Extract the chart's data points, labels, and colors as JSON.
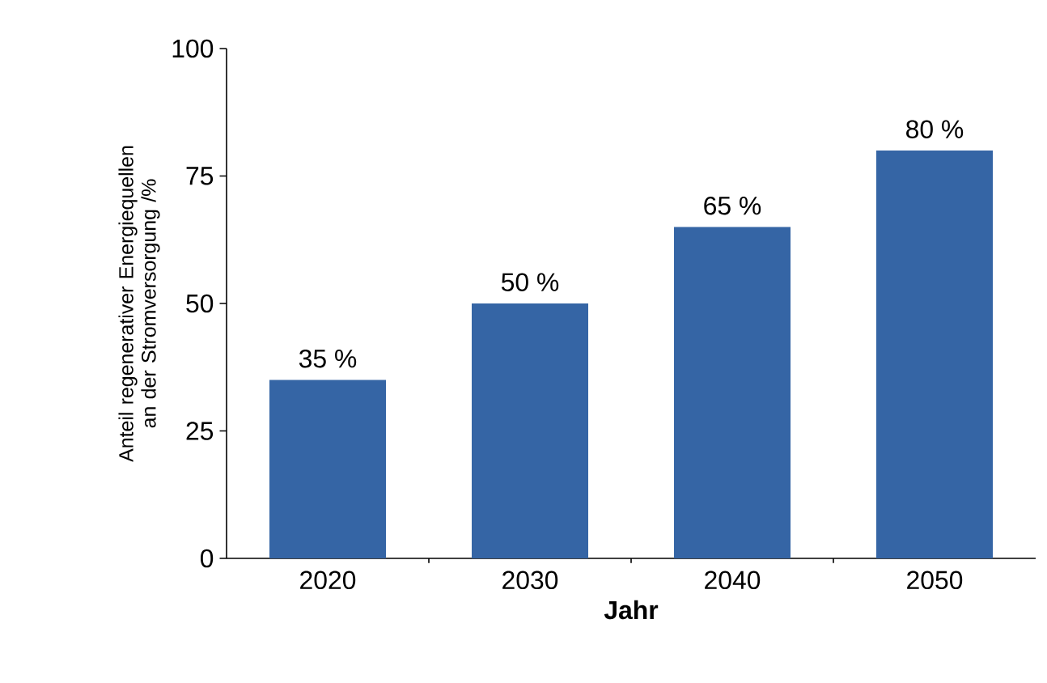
{
  "chart_data": {
    "type": "bar",
    "xlabel": "Jahr",
    "ylabel": "Anteil regenerativer Energiequellen an der Stromversorgung /%",
    "categories": [
      "2020",
      "2030",
      "2040",
      "2050"
    ],
    "values": [
      35,
      50,
      65,
      80
    ],
    "value_labels": [
      "35 %",
      "50 %",
      "65 %",
      "80 %"
    ],
    "color": "#3565a5",
    "ylim": [
      0,
      100
    ],
    "yticks": [
      0,
      25,
      50,
      75,
      100
    ],
    "grid": false
  }
}
